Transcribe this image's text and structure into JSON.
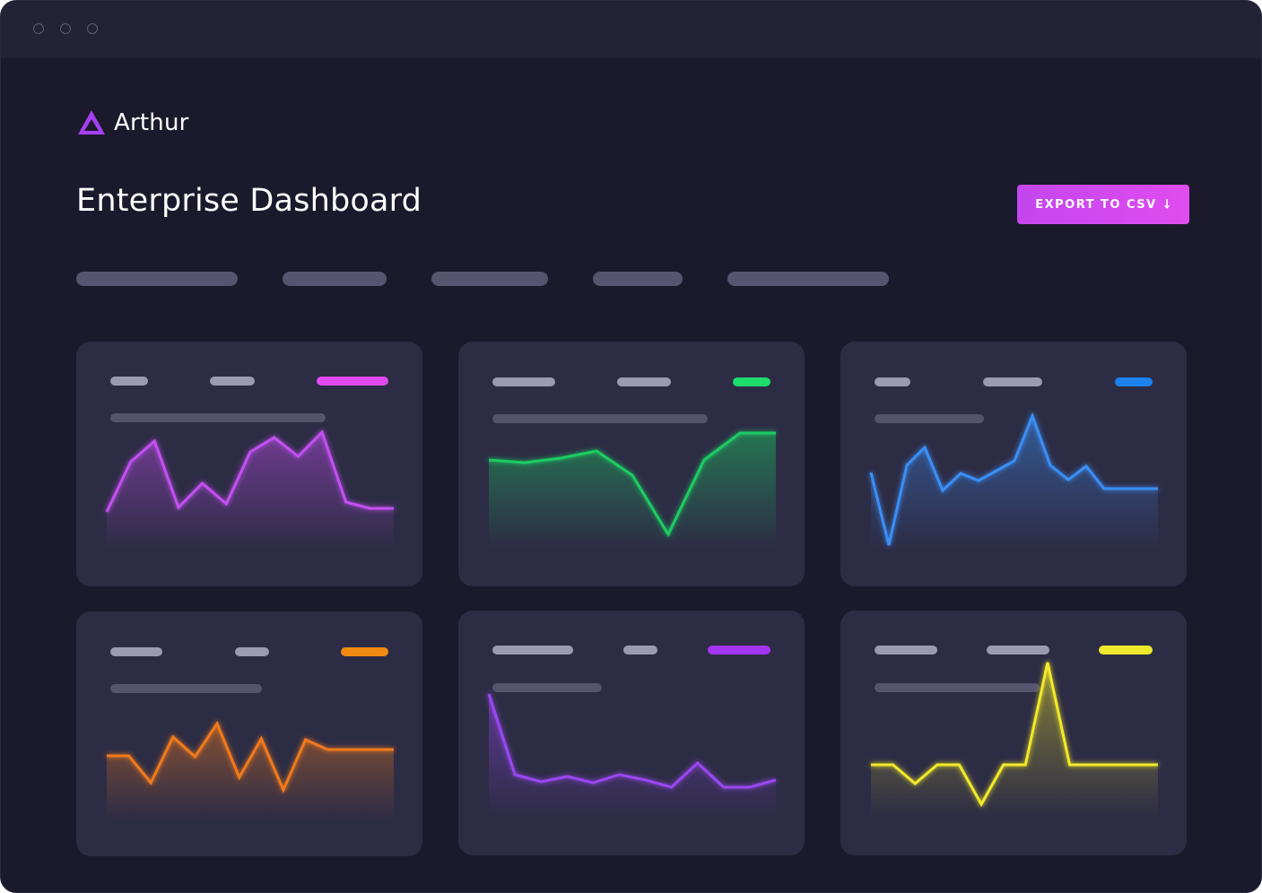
{
  "window": {
    "controls": [
      "close",
      "minimize",
      "maximize"
    ]
  },
  "brand": {
    "name": "Arthur",
    "icon": "arthur-triangle-logo-icon",
    "color": "#a63ef2"
  },
  "page": {
    "title": "Enterprise Dashboard"
  },
  "export_button": {
    "label": "EXPORT TO CSV",
    "icon": "download-arrow-icon",
    "color": "#d84af0"
  },
  "tabs": [
    {
      "name": "tab-1"
    },
    {
      "name": "tab-2"
    },
    {
      "name": "tab-3"
    },
    {
      "name": "tab-4"
    },
    {
      "name": "tab-5"
    }
  ],
  "chart_data": [
    {
      "type": "area",
      "color": "#c34ff2",
      "x": [
        0,
        1,
        2,
        3,
        4,
        5,
        6,
        7,
        8,
        9,
        10,
        11,
        12
      ],
      "values": [
        0.42,
        0.98,
        1.21,
        0.47,
        0.74,
        0.51,
        1.09,
        1.25,
        1.04,
        1.31,
        0.53,
        0.46,
        0.46
      ]
    },
    {
      "type": "area",
      "color": "#1ccc62",
      "x": [
        0,
        1,
        2,
        3,
        4,
        5,
        6,
        7,
        8
      ],
      "values": [
        1.0,
        0.97,
        1.02,
        1.1,
        0.83,
        0.17,
        1.0,
        1.3,
        1.3
      ]
    },
    {
      "type": "area",
      "color": "#3b8ef6",
      "x": [
        0,
        1,
        2,
        3,
        4,
        5,
        6,
        7,
        8,
        9,
        10,
        11,
        12,
        13,
        14,
        15,
        16
      ],
      "values": [
        0.86,
        0.05,
        0.94,
        1.14,
        0.66,
        0.85,
        0.77,
        0.88,
        0.99,
        1.49,
        0.94,
        0.78,
        0.93,
        0.68,
        0.68,
        0.68,
        0.68
      ]
    },
    {
      "type": "area",
      "color": "#f07a1e",
      "x": [
        0,
        1,
        2,
        3,
        4,
        5,
        6,
        7,
        8,
        9,
        10,
        11,
        12,
        13
      ],
      "values": [
        0.71,
        0.71,
        0.41,
        0.92,
        0.7,
        1.07,
        0.47,
        0.9,
        0.33,
        0.89,
        0.78,
        0.78,
        0.78,
        0.78
      ]
    },
    {
      "type": "area",
      "color": "#9a47f2",
      "x": [
        0,
        1,
        2,
        3,
        4,
        5,
        6,
        7,
        8,
        9,
        10,
        11
      ],
      "values": [
        1.39,
        0.49,
        0.41,
        0.47,
        0.4,
        0.49,
        0.43,
        0.35,
        0.62,
        0.35,
        0.35,
        0.43
      ]
    },
    {
      "type": "area",
      "color": "#f2e92a",
      "x": [
        0,
        1,
        2,
        3,
        4,
        5,
        6,
        7,
        8,
        9,
        10,
        11,
        12,
        13
      ],
      "values": [
        0.6,
        0.6,
        0.39,
        0.6,
        0.6,
        0.16,
        0.6,
        0.6,
        1.74,
        0.6,
        0.6,
        0.6,
        0.6,
        0.6
      ]
    }
  ]
}
